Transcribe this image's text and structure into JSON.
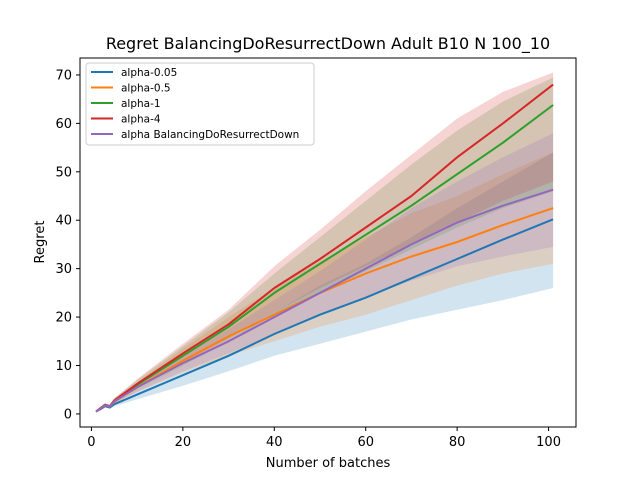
{
  "chart_data": {
    "type": "line",
    "title": "Regret BalancingDoResurrectDown Adult B10 N 100_10",
    "xlabel": "Number of batches",
    "ylabel": "Regret",
    "xlim": [
      -2.5,
      106
    ],
    "ylim": [
      -2.7,
      73.5
    ],
    "xticks": [
      0,
      20,
      40,
      60,
      80,
      100
    ],
    "yticks": [
      0,
      10,
      20,
      30,
      40,
      50,
      60,
      70
    ],
    "grid": false,
    "legend_position": "upper-left",
    "shaded_band": "confidence interval around each series",
    "series": [
      {
        "name": "alpha-0.05",
        "color": "#1f77b4",
        "x": [
          1,
          2,
          3,
          4,
          5,
          10,
          20,
          30,
          40,
          50,
          60,
          70,
          80,
          90,
          101
        ],
        "y": [
          0.5,
          1.0,
          1.6,
          1.3,
          2.0,
          4.0,
          8.0,
          12.0,
          16.5,
          20.5,
          24.0,
          28.0,
          32.0,
          36.0,
          40.2
        ],
        "lower": [
          0.5,
          0.9,
          1.4,
          1.1,
          1.6,
          3.0,
          5.8,
          8.8,
          12.0,
          14.5,
          17.0,
          19.5,
          21.5,
          23.5,
          26.0
        ],
        "upper": [
          0.5,
          1.1,
          1.8,
          1.5,
          2.4,
          5.0,
          10.2,
          15.2,
          21.0,
          26.5,
          31.0,
          36.5,
          42.5,
          48.0,
          54.0
        ]
      },
      {
        "name": "alpha-0.5",
        "color": "#ff7f0e",
        "x": [
          1,
          2,
          3,
          4,
          5,
          10,
          20,
          30,
          40,
          50,
          60,
          70,
          80,
          90,
          101
        ],
        "y": [
          0.5,
          1.1,
          1.8,
          1.5,
          2.5,
          5.5,
          11.0,
          16.0,
          20.5,
          25.0,
          29.0,
          32.5,
          35.5,
          39.0,
          42.5
        ],
        "lower": [
          0.5,
          1.0,
          1.6,
          1.3,
          2.1,
          4.5,
          8.5,
          12.0,
          15.0,
          18.0,
          20.5,
          23.5,
          26.5,
          29.0,
          31.0
        ],
        "upper": [
          0.5,
          1.2,
          2.0,
          1.7,
          2.9,
          6.5,
          13.5,
          20.0,
          26.0,
          31.5,
          36.5,
          41.5,
          45.0,
          49.5,
          54.0
        ]
      },
      {
        "name": "alpha-1",
        "color": "#2ca02c",
        "x": [
          1,
          2,
          3,
          4,
          5,
          10,
          20,
          30,
          40,
          50,
          60,
          70,
          80,
          90,
          101
        ],
        "y": [
          0.5,
          1.2,
          1.9,
          1.6,
          2.8,
          6.0,
          12.0,
          18.0,
          25.0,
          31.0,
          37.0,
          43.0,
          49.5,
          56.0,
          63.8
        ],
        "lower": [
          0.5,
          1.1,
          1.7,
          1.4,
          2.4,
          5.0,
          10.0,
          15.0,
          20.5,
          25.0,
          29.5,
          34.0,
          38.5,
          42.5,
          46.0
        ],
        "upper": [
          0.5,
          1.3,
          2.1,
          1.8,
          3.2,
          7.0,
          14.0,
          21.0,
          29.0,
          36.5,
          44.0,
          51.5,
          58.5,
          64.5,
          69.5
        ]
      },
      {
        "name": "alpha-4",
        "color": "#d62728",
        "x": [
          1,
          2,
          3,
          4,
          5,
          10,
          20,
          30,
          40,
          50,
          60,
          70,
          80,
          90,
          101
        ],
        "y": [
          0.5,
          1.2,
          1.9,
          1.6,
          2.8,
          6.2,
          12.5,
          18.5,
          26.0,
          32.0,
          38.5,
          45.0,
          53.0,
          60.0,
          68.0
        ],
        "lower": [
          0.5,
          1.1,
          1.7,
          1.4,
          2.4,
          5.2,
          10.5,
          15.5,
          21.0,
          26.0,
          30.5,
          35.0,
          39.5,
          44.0,
          48.0
        ],
        "upper": [
          0.5,
          1.3,
          2.1,
          1.8,
          3.2,
          7.2,
          14.5,
          21.5,
          30.5,
          38.0,
          46.0,
          53.5,
          61.0,
          66.5,
          70.5
        ]
      },
      {
        "name": "alpha BalancingDoResurrectDown",
        "color": "#9467bd",
        "x": [
          1,
          2,
          3,
          4,
          5,
          10,
          20,
          30,
          40,
          50,
          60,
          70,
          80,
          90,
          101
        ],
        "y": [
          0.5,
          1.1,
          1.8,
          1.5,
          2.6,
          5.5,
          10.5,
          15.0,
          20.0,
          25.0,
          30.0,
          35.0,
          39.5,
          43.0,
          46.3
        ],
        "lower": [
          0.5,
          1.0,
          1.6,
          1.3,
          2.2,
          4.6,
          8.8,
          12.5,
          16.5,
          20.5,
          24.0,
          27.5,
          30.5,
          32.5,
          34.5
        ],
        "upper": [
          0.5,
          1.2,
          2.0,
          1.7,
          3.0,
          6.4,
          12.2,
          17.5,
          23.5,
          29.5,
          36.0,
          42.5,
          48.0,
          53.0,
          58.0
        ]
      }
    ]
  }
}
